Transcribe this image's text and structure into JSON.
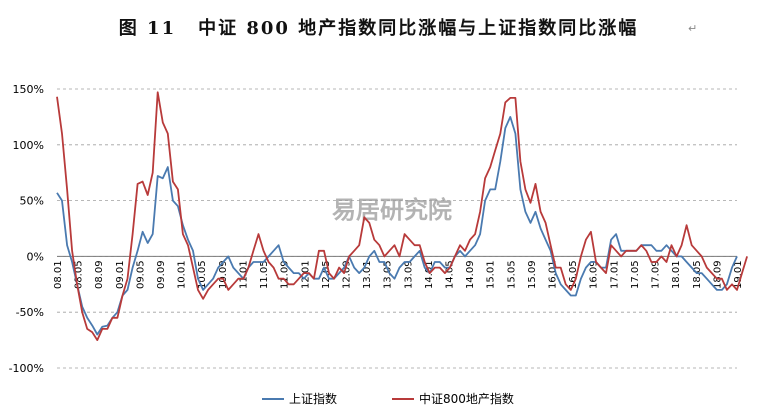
{
  "title": {
    "figure_no": "图 11",
    "text": "中证 800 地产指数同比涨幅与上证指数同比涨幅",
    "return_mark": "↵"
  },
  "watermark": "易居研究院",
  "colors": {
    "series_a": "#4a7ab0",
    "series_b": "#b83a3a",
    "grid": "#a0a0a0"
  },
  "chart_data": {
    "type": "line",
    "ylim": [
      -100,
      150
    ],
    "y_ticks": [
      150,
      100,
      50,
      0,
      -50,
      -100
    ],
    "y_tick_labels": [
      "150%",
      "100%",
      "50%",
      "0%",
      "-50%",
      "-100%"
    ],
    "x_ticks": [
      "08.01",
      "08.05",
      "08.09",
      "09.01",
      "09.05",
      "09.09",
      "10.01",
      "10.05",
      "10.09",
      "11.01",
      "11.05",
      "11.09",
      "12.01",
      "12.05",
      "12.09",
      "13.01",
      "13.05",
      "13.09",
      "14.01",
      "14.05",
      "14.09",
      "15.01",
      "15.05",
      "15.09",
      "16.01",
      "16.05",
      "16.09",
      "17.01",
      "17.05",
      "17.09",
      "18.01",
      "18.05",
      "18.09",
      "19.01"
    ],
    "grid": "horizontal dashed",
    "legend_position": "bottom-center",
    "series": [
      {
        "name": "上证指数",
        "color": "#4a7ab0",
        "values": [
          57,
          50,
          10,
          -5,
          -25,
          -45,
          -55,
          -62,
          -70,
          -63,
          -62,
          -55,
          -50,
          -35,
          -30,
          -10,
          5,
          22,
          12,
          20,
          72,
          70,
          80,
          50,
          45,
          28,
          15,
          5,
          -20,
          -30,
          -25,
          -20,
          -10,
          -5,
          0,
          -10,
          -15,
          -20,
          -10,
          -5,
          -5,
          -5,
          0,
          5,
          10,
          -5,
          -10,
          -15,
          -15,
          -20,
          -15,
          -20,
          -20,
          -10,
          -20,
          -20,
          -15,
          -10,
          0,
          -10,
          -15,
          -10,
          0,
          5,
          -5,
          -5,
          -15,
          -20,
          -10,
          -5,
          -5,
          0,
          5,
          -10,
          -15,
          -5,
          -5,
          -10,
          -10,
          0,
          5,
          0,
          5,
          10,
          20,
          50,
          60,
          60,
          85,
          115,
          125,
          110,
          60,
          40,
          30,
          40,
          25,
          15,
          5,
          -15,
          -25,
          -30,
          -35,
          -35,
          -20,
          -10,
          -5,
          -5,
          -10,
          -10,
          15,
          20,
          5,
          5,
          5,
          5,
          10,
          10,
          10,
          5,
          5,
          10,
          5,
          0,
          0,
          -5,
          -10,
          -15,
          -15,
          -20,
          -25,
          -30,
          -30,
          -25,
          -10,
          0
        ]
      },
      {
        "name": "中证800地产指数",
        "color": "#b83a3a",
        "values": [
          143,
          110,
          60,
          5,
          -25,
          -50,
          -65,
          -68,
          -75,
          -65,
          -65,
          -55,
          -55,
          -35,
          -20,
          20,
          65,
          67,
          55,
          75,
          147,
          120,
          110,
          67,
          60,
          20,
          10,
          -10,
          -30,
          -38,
          -30,
          -25,
          -20,
          -20,
          -30,
          -25,
          -20,
          -20,
          -10,
          5,
          20,
          5,
          -5,
          -10,
          -20,
          -20,
          -25,
          -25,
          -20,
          -15,
          -15,
          -20,
          5,
          5,
          -15,
          -20,
          -10,
          -15,
          0,
          5,
          10,
          35,
          30,
          15,
          10,
          0,
          5,
          10,
          0,
          20,
          15,
          10,
          10,
          -5,
          -15,
          -10,
          -10,
          -15,
          -10,
          0,
          10,
          5,
          15,
          20,
          40,
          70,
          80,
          95,
          110,
          138,
          142,
          142,
          85,
          60,
          48,
          65,
          40,
          30,
          10,
          -10,
          -10,
          -25,
          -30,
          -20,
          0,
          15,
          22,
          -5,
          -10,
          -15,
          10,
          5,
          0,
          5,
          5,
          5,
          10,
          5,
          -5,
          -5,
          0,
          -5,
          10,
          0,
          10,
          28,
          10,
          5,
          0,
          -10,
          -15,
          -20,
          -20,
          -30,
          -25,
          -30,
          -15,
          0
        ]
      }
    ]
  }
}
